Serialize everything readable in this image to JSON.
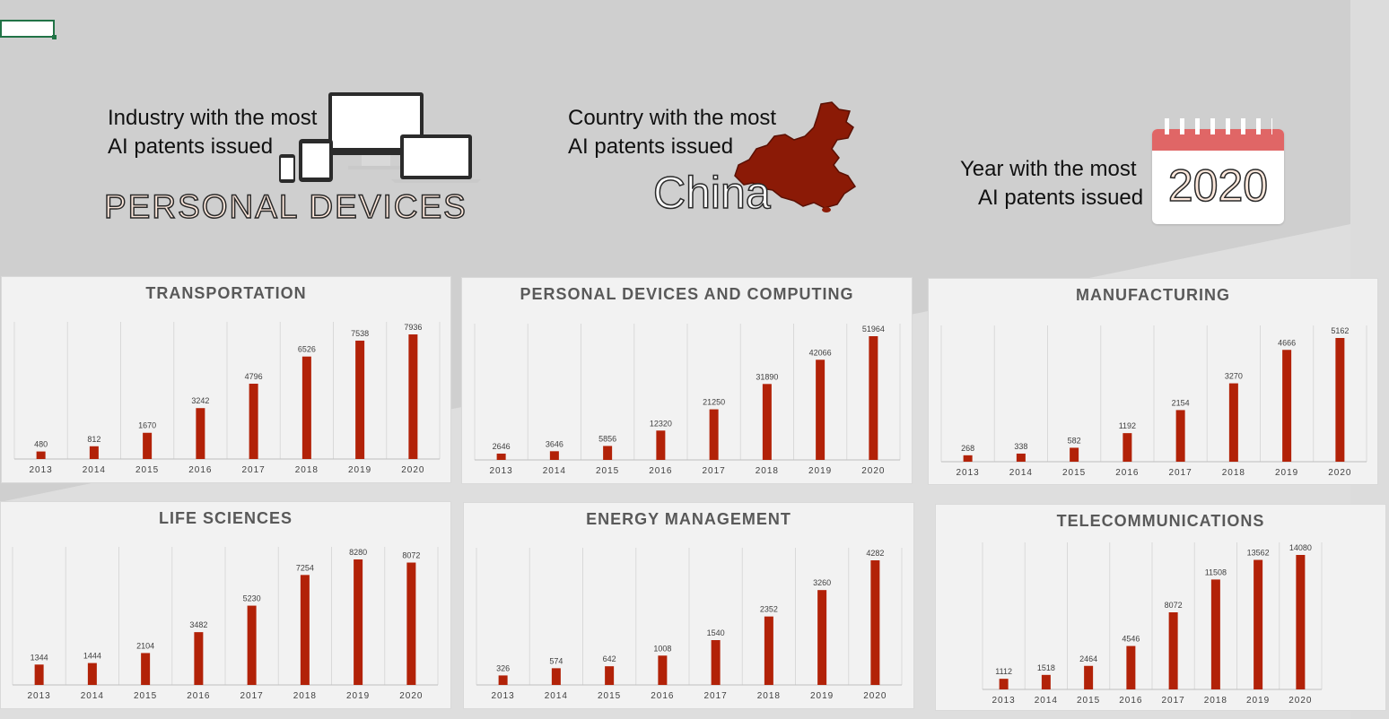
{
  "kpis": {
    "industry": {
      "line1": "Industry with the most",
      "line2": "AI patents issued",
      "value": "PERSONAL DEVICES"
    },
    "country": {
      "line1": "Country with the most",
      "line2": "AI patents issued",
      "value": "China"
    },
    "year": {
      "line1": "Year with the most",
      "line2": "AI patents issued",
      "value": "2020"
    }
  },
  "icons": [
    "devices-icon",
    "china-map-icon",
    "calendar-icon"
  ],
  "colors": {
    "bar": "#b22208",
    "calendar_top": "#e06666",
    "accent_text_fill": "#fde8dc"
  },
  "chart_data": [
    {
      "type": "bar",
      "title": "TRANSPORTATION",
      "categories": [
        "2013",
        "2014",
        "2015",
        "2016",
        "2017",
        "2018",
        "2019",
        "2020"
      ],
      "values": [
        480,
        812,
        1670,
        3242,
        4796,
        6526,
        7538,
        7936
      ]
    },
    {
      "type": "bar",
      "title": "PERSONAL DEVICES AND COMPUTING",
      "categories": [
        "2013",
        "2014",
        "2015",
        "2016",
        "2017",
        "2018",
        "2019",
        "2020"
      ],
      "values": [
        2646,
        3646,
        5856,
        12320,
        21250,
        31890,
        42066,
        51964
      ]
    },
    {
      "type": "bar",
      "title": "MANUFACTURING",
      "categories": [
        "2013",
        "2014",
        "2015",
        "2016",
        "2017",
        "2018",
        "2019",
        "2020"
      ],
      "values": [
        268,
        338,
        582,
        1192,
        2154,
        3270,
        4666,
        5162
      ]
    },
    {
      "type": "bar",
      "title": "LIFE SCIENCES",
      "categories": [
        "2013",
        "2014",
        "2015",
        "2016",
        "2017",
        "2018",
        "2019",
        "2020"
      ],
      "values": [
        1344,
        1444,
        2104,
        3482,
        5230,
        7254,
        8280,
        8072
      ]
    },
    {
      "type": "bar",
      "title": "ENERGY MANAGEMENT",
      "categories": [
        "2013",
        "2014",
        "2015",
        "2016",
        "2017",
        "2018",
        "2019",
        "2020"
      ],
      "values": [
        326,
        574,
        642,
        1008,
        1540,
        2352,
        3260,
        4282
      ]
    },
    {
      "type": "bar",
      "title": "TELECOMMUNICATIONS",
      "categories": [
        "2013",
        "2014",
        "2015",
        "2016",
        "2017",
        "2018",
        "2019",
        "2020"
      ],
      "values": [
        1112,
        1518,
        2464,
        4546,
        8072,
        11508,
        13562,
        14080
      ]
    }
  ]
}
